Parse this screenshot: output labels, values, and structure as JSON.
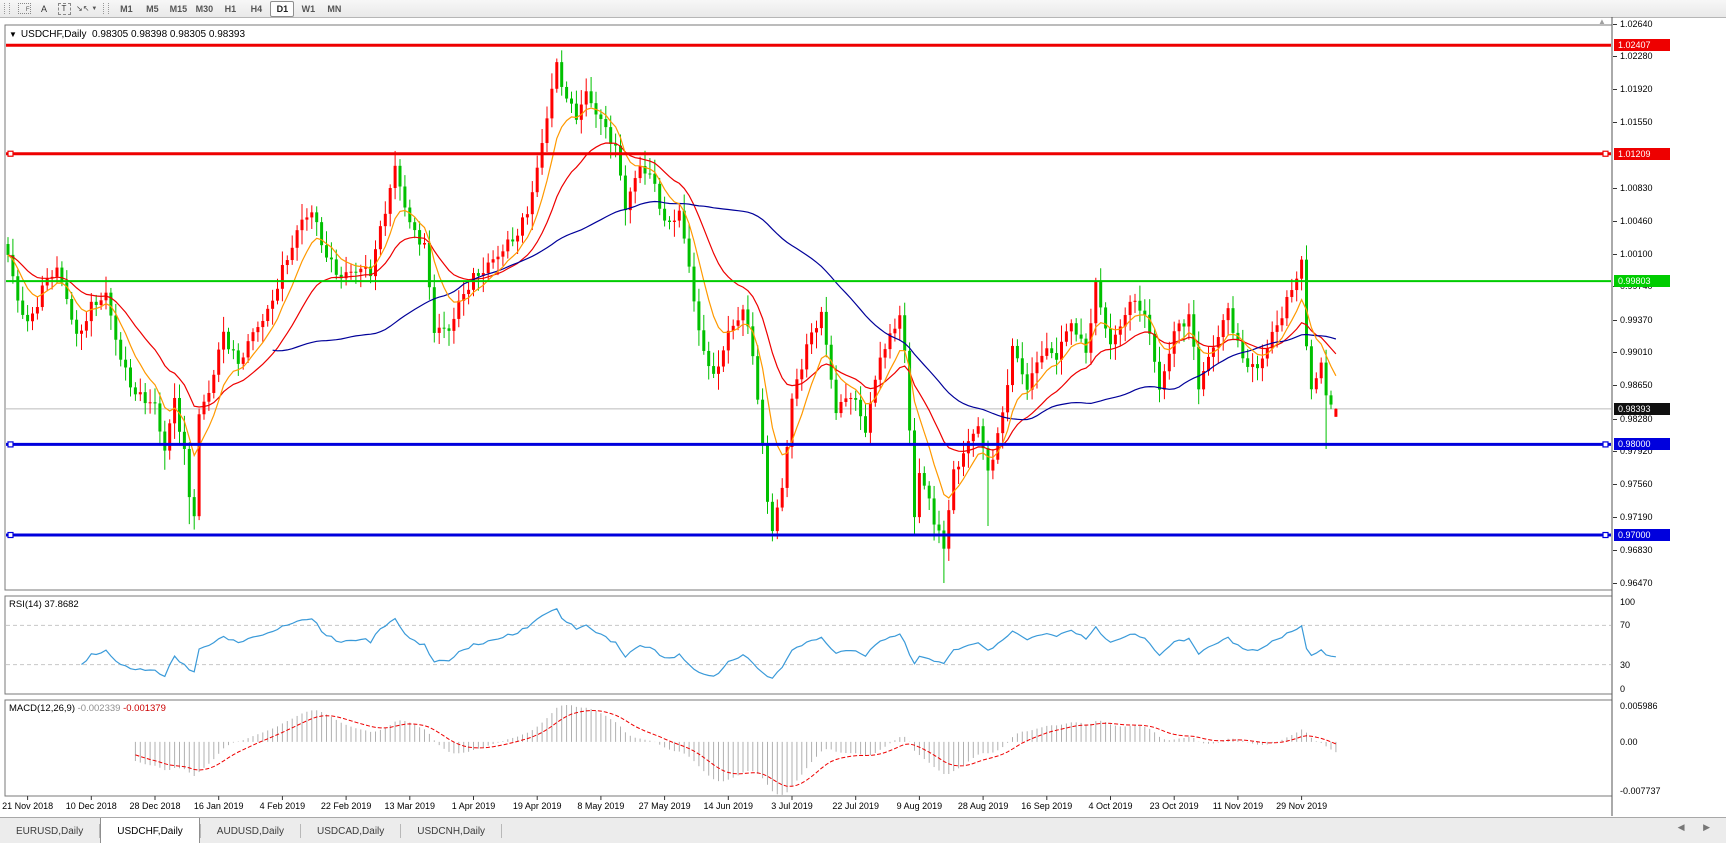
{
  "toolbar": {
    "tools": [
      {
        "name": "fibonacci-tool",
        "glyph": "F",
        "style": "grid"
      },
      {
        "name": "text-label-tool",
        "glyph": "A",
        "style": "plain"
      },
      {
        "name": "text-tool",
        "glyph": "T",
        "style": "dashed"
      },
      {
        "name": "arrows-tool",
        "glyph": "↘",
        "glyph2": "↖",
        "style": "arrows",
        "caret": "▼"
      }
    ],
    "timeframes": [
      "M1",
      "M5",
      "M15",
      "M30",
      "H1",
      "H4",
      "D1",
      "W1",
      "MN"
    ],
    "active_timeframe": "D1"
  },
  "symbol_info": {
    "arrow": "▼",
    "symbol": "USDCHF,Daily",
    "open": "0.98305",
    "high": "0.98398",
    "low": "0.98305",
    "close": "0.98393"
  },
  "indicators": {
    "rsi_text": "RSI(14) 37.8682",
    "macd_name": "MACD(12,26,9)",
    "macd_main": "-0.002339",
    "macd_signal": "-0.001379"
  },
  "price_axis": {
    "ticks": [
      "1.02640",
      "1.02280",
      "1.01920",
      "1.01550",
      "1.00830",
      "1.00460",
      "1.00100",
      "0.99740",
      "0.99370",
      "0.99010",
      "0.98650",
      "0.98280",
      "0.97920",
      "0.97560",
      "0.97190",
      "0.96830",
      "0.96470"
    ],
    "badges": [
      {
        "text": "1.02407",
        "bg": "#ee0000"
      },
      {
        "text": "1.01209",
        "bg": "#ee0000"
      },
      {
        "text": "0.99803",
        "bg": "#00cc00"
      },
      {
        "text": "0.98393",
        "bg": "#101010"
      },
      {
        "text": "0.98000",
        "bg": "#0000dd"
      },
      {
        "text": "0.97000",
        "bg": "#0000dd"
      }
    ]
  },
  "rsi_axis": [
    "100",
    "70",
    "30",
    "0"
  ],
  "macd_axis": [
    "0.005986",
    "0.00",
    "-0.007737"
  ],
  "time_axis": [
    "21 Nov 2018",
    "10 Dec 2018",
    "28 Dec 2018",
    "16 Jan 2019",
    "4 Feb 2019",
    "22 Feb 2019",
    "13 Mar 2019",
    "1 Apr 2019",
    "19 Apr 2019",
    "8 May 2019",
    "27 May 2019",
    "14 Jun 2019",
    "3 Jul 2019",
    "22 Jul 2019",
    "9 Aug 2019",
    "28 Aug 2019",
    "16 Sep 2019",
    "4 Oct 2019",
    "23 Oct 2019",
    "11 Nov 2019",
    "29 Nov 2019"
  ],
  "tabs": [
    "EURUSD,Daily",
    "USDCHF,Daily",
    "AUDUSD,Daily",
    "USDCAD,Daily",
    "USDCNH,Daily"
  ],
  "active_tab": "USDCHF,Daily",
  "tab_scroll": {
    "left": "◀",
    "right": "▶"
  },
  "scroll_marker": "▲",
  "chart_data": {
    "type": "candlestick",
    "instrument": "USDCHF",
    "timeframe": "Daily",
    "bars": 272,
    "bars_per_label": 13,
    "first_label_bar": 4,
    "price_ylim": [
      0.96393,
      1.0263
    ],
    "bull_color": "#ff0000",
    "bear_color": "#00c000",
    "close_path": [
      [
        0,
        1.0005
      ],
      [
        2,
        0.996
      ],
      [
        4,
        0.9935
      ],
      [
        8,
        0.9982
      ],
      [
        10,
        0.999
      ],
      [
        12,
        0.9962
      ],
      [
        14,
        0.992
      ],
      [
        17,
        0.9952
      ],
      [
        20,
        0.9962
      ],
      [
        23,
        0.9895
      ],
      [
        26,
        0.9858
      ],
      [
        30,
        0.984
      ],
      [
        31,
        0.9812
      ],
      [
        32,
        0.9795
      ],
      [
        34,
        0.985
      ],
      [
        36,
        0.9795
      ],
      [
        37,
        0.974
      ],
      [
        38,
        0.9725
      ],
      [
        39,
        0.983
      ],
      [
        41,
        0.9855
      ],
      [
        44,
        0.9925
      ],
      [
        47,
        0.989
      ],
      [
        50,
        0.992
      ],
      [
        53,
        0.9945
      ],
      [
        56,
        0.9995
      ],
      [
        60,
        1.0045
      ],
      [
        62,
        1.0055
      ],
      [
        65,
        1.001
      ],
      [
        68,
        0.9985
      ],
      [
        71,
        0.999
      ],
      [
        74,
        0.9992
      ],
      [
        76,
        1.004
      ],
      [
        79,
        1.0105
      ],
      [
        82,
        1.004
      ],
      [
        85,
        1.002
      ],
      [
        87,
        0.993
      ],
      [
        90,
        0.9925
      ],
      [
        93,
        0.9965
      ],
      [
        95,
        0.9985
      ],
      [
        98,
        1.0
      ],
      [
        101,
        1.0012
      ],
      [
        104,
        1.0032
      ],
      [
        106,
        1.006
      ],
      [
        108,
        1.0105
      ],
      [
        111,
        1.019
      ],
      [
        112,
        1.0215
      ],
      [
        114,
        1.018
      ],
      [
        116,
        1.0165
      ],
      [
        118,
        1.019
      ],
      [
        121,
        1.0155
      ],
      [
        124,
        1.0125
      ],
      [
        126,
        1.0065
      ],
      [
        129,
        1.011
      ],
      [
        132,
        1.0085
      ],
      [
        134,
        1.004
      ],
      [
        137,
        1.0058
      ],
      [
        139,
        1.0
      ],
      [
        141,
        0.992
      ],
      [
        144,
        0.987
      ],
      [
        147,
        0.9925
      ],
      [
        150,
        0.995
      ],
      [
        152,
        0.99
      ],
      [
        155,
        0.974
      ],
      [
        156,
        0.9705
      ],
      [
        158,
        0.9755
      ],
      [
        160,
        0.985
      ],
      [
        163,
        0.9905
      ],
      [
        166,
        0.9945
      ],
      [
        169,
        0.984
      ],
      [
        172,
        0.9855
      ],
      [
        175,
        0.9815
      ],
      [
        178,
        0.99
      ],
      [
        181,
        0.993
      ],
      [
        182,
        0.9945
      ],
      [
        183,
        0.9895
      ],
      [
        184,
        0.9815
      ],
      [
        185,
        0.972
      ],
      [
        186,
        0.9765
      ],
      [
        188,
        0.9745
      ],
      [
        189,
        0.9715
      ],
      [
        191,
        0.969
      ],
      [
        193,
        0.9765
      ],
      [
        196,
        0.98
      ],
      [
        198,
        0.9825
      ],
      [
        200,
        0.977
      ],
      [
        203,
        0.983
      ],
      [
        205,
        0.9905
      ],
      [
        208,
        0.9865
      ],
      [
        211,
        0.9905
      ],
      [
        214,
        0.9895
      ],
      [
        217,
        0.9935
      ],
      [
        220,
        0.9905
      ],
      [
        222,
        0.9975
      ],
      [
        225,
        0.9905
      ],
      [
        228,
        0.9945
      ],
      [
        230,
        0.9965
      ],
      [
        233,
        0.9925
      ],
      [
        235,
        0.9855
      ],
      [
        238,
        0.9925
      ],
      [
        241,
        0.9945
      ],
      [
        243,
        0.9865
      ],
      [
        246,
        0.9905
      ],
      [
        249,
        0.995
      ],
      [
        252,
        0.9895
      ],
      [
        255,
        0.988
      ],
      [
        258,
        0.992
      ],
      [
        261,
        0.996
      ],
      [
        264,
        1.0
      ],
      [
        265,
        0.9905
      ],
      [
        266,
        0.986
      ],
      [
        268,
        0.9885
      ],
      [
        269,
        0.9855
      ],
      [
        270,
        0.9845
      ],
      [
        271,
        0.98393
      ]
    ],
    "wick_lows": [
      [
        32,
        0.9772
      ],
      [
        37,
        0.9712
      ],
      [
        38,
        0.9706
      ],
      [
        156,
        0.9693
      ],
      [
        185,
        0.97
      ],
      [
        191,
        0.9647
      ],
      [
        200,
        0.971
      ],
      [
        269,
        0.9795
      ]
    ],
    "wick_highs": [
      [
        79,
        1.0124
      ],
      [
        112,
        1.0226
      ],
      [
        118,
        1.0204
      ],
      [
        222,
        0.9984
      ],
      [
        264,
        1.0008
      ]
    ],
    "current_bar": {
      "open": 0.98305,
      "high": 0.98398,
      "low": 0.98305,
      "close": 0.98393
    },
    "moving_averages": [
      {
        "type": "ema",
        "period": 21,
        "color": "#ee0000"
      },
      {
        "type": "sma",
        "period": 55,
        "color": "#000099"
      },
      {
        "type": "ema",
        "period": 8,
        "color": "#ff9900"
      }
    ],
    "hlines": [
      {
        "price": 1.02407,
        "color": "#ee0000",
        "width": 3,
        "handles": false
      },
      {
        "price": 1.01209,
        "color": "#ee0000",
        "width": 3,
        "handles": true
      },
      {
        "price": 0.99803,
        "color": "#00cc00",
        "width": 2,
        "handles": false
      },
      {
        "price": 0.98,
        "color": "#0000dd",
        "width": 3,
        "handles": true
      },
      {
        "price": 0.97,
        "color": "#0000dd",
        "width": 3,
        "handles": true
      }
    ],
    "current_price_line": {
      "price": 0.98393,
      "color": "#bbbbbb"
    },
    "rsi": {
      "period": 14,
      "value": 37.8682,
      "levels": [
        70,
        30
      ],
      "color": "#3a9ad9",
      "ylim": [
        0,
        100
      ]
    },
    "macd": {
      "fast": 12,
      "slow": 26,
      "signal": 9,
      "main": -0.002339,
      "signal_value": -0.001379,
      "ylim": [
        -0.007737,
        0.005986
      ],
      "hist_color": "#b0b0b0",
      "signal_color": "#ee0000"
    }
  }
}
